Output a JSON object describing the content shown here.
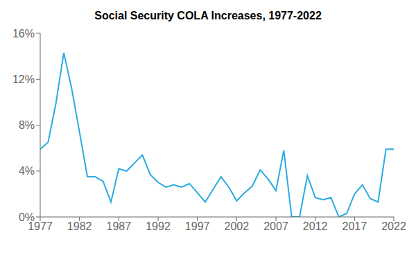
{
  "chart_data": {
    "type": "line",
    "title": "Social Security COLA Increases, 1977-2022",
    "x": [
      1977,
      1978,
      1979,
      1980,
      1981,
      1982,
      1983,
      1984,
      1985,
      1986,
      1987,
      1988,
      1989,
      1990,
      1991,
      1992,
      1993,
      1994,
      1995,
      1996,
      1997,
      1998,
      1999,
      2000,
      2001,
      2002,
      2003,
      2004,
      2005,
      2006,
      2007,
      2008,
      2009,
      2010,
      2011,
      2012,
      2013,
      2014,
      2015,
      2016,
      2017,
      2018,
      2019,
      2020,
      2021,
      2022
    ],
    "values": [
      5.9,
      6.5,
      9.9,
      14.3,
      11.2,
      7.4,
      3.5,
      3.5,
      3.1,
      1.3,
      4.2,
      4.0,
      4.7,
      5.4,
      3.7,
      3.0,
      2.6,
      2.8,
      2.6,
      2.9,
      2.1,
      1.3,
      2.4,
      3.5,
      2.6,
      1.4,
      2.1,
      2.7,
      4.1,
      3.3,
      2.3,
      5.8,
      0.0,
      0.0,
      3.6,
      1.7,
      1.5,
      1.7,
      0.0,
      0.3,
      2.0,
      2.8,
      1.6,
      1.3,
      5.9,
      5.9
    ],
    "color": "#29ABE2",
    "xlim": [
      1977,
      2022
    ],
    "xticks": [
      1977,
      1982,
      1987,
      1992,
      1997,
      2002,
      2007,
      2012,
      2017,
      2022
    ],
    "ylim": [
      0,
      16
    ],
    "yticks": [
      {
        "value": 0,
        "label": "0%"
      },
      {
        "value": 4,
        "label": "4%"
      },
      {
        "value": 8,
        "label": "8%"
      },
      {
        "value": 12,
        "label": "12%"
      },
      {
        "value": 16,
        "label": "16%"
      }
    ],
    "grid": false
  }
}
